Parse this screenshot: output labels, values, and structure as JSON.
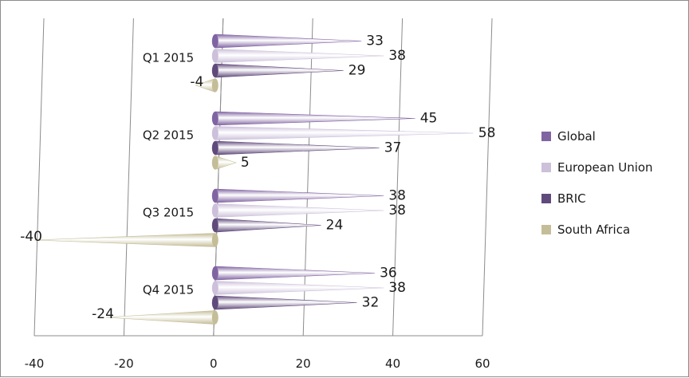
{
  "chart_data": {
    "type": "bar",
    "orientation": "horizontal",
    "categories": [
      "Q1 2015",
      "Q2 2015",
      "Q3 2015",
      "Q4 2015"
    ],
    "series": [
      {
        "name": "Global",
        "values": [
          33,
          45,
          38,
          36
        ],
        "color": "#8064A2"
      },
      {
        "name": "European Union",
        "values": [
          38,
          58,
          38,
          38
        ],
        "color": "#CCC0DA"
      },
      {
        "name": "BRIC",
        "values": [
          29,
          37,
          24,
          32
        ],
        "color": "#604A7B"
      },
      {
        "name": "South Africa",
        "values": [
          -4,
          5,
          -40,
          -24
        ],
        "color": "#C4BD97"
      }
    ],
    "xlim": [
      -40,
      60
    ],
    "xticks": [
      -40,
      -20,
      0,
      20,
      40,
      60
    ],
    "grid": true,
    "legend_position": "right"
  }
}
